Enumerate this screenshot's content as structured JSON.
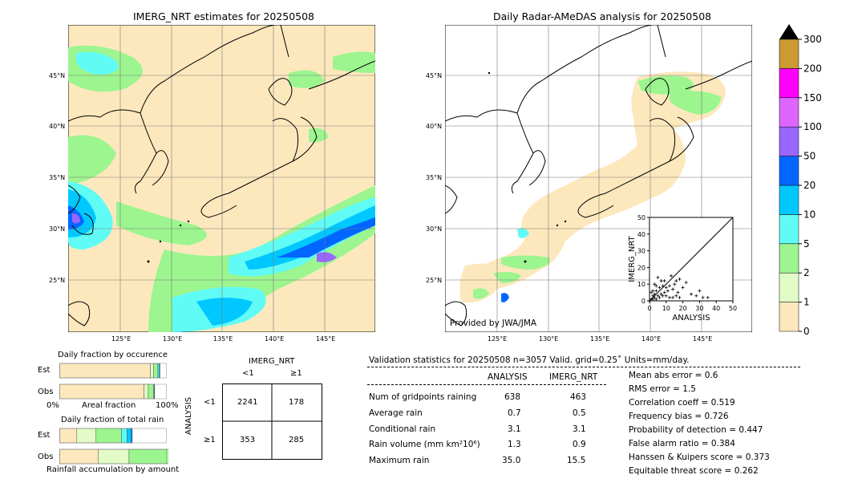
{
  "left_map": {
    "title": "IMERG_NRT estimates for 20250508",
    "lat_labels": [
      "45°N",
      "40°N",
      "35°N",
      "30°N",
      "25°N"
    ],
    "lon_labels": [
      "125°E",
      "130°E",
      "135°E",
      "140°E",
      "145°E"
    ]
  },
  "right_map": {
    "title": "Daily Radar-AMeDAS analysis for 20250508",
    "lat_labels": [
      "45°N",
      "40°N",
      "35°N",
      "30°N",
      "25°N"
    ],
    "lon_labels": [
      "125°E",
      "130°E",
      "135°E",
      "140°E",
      "145°E"
    ],
    "credit": "Provided by JWA/JMA"
  },
  "colorbar": {
    "levels": [
      "0",
      "1",
      "2",
      "5",
      "10",
      "20",
      "50",
      "100",
      "150",
      "200",
      "300"
    ],
    "colors": [
      "#fde8bd",
      "#e2fbc7",
      "#9cf58f",
      "#60fbf5",
      "#00c8ff",
      "#0066ff",
      "#9966ff",
      "#dd66ff",
      "#ff00ff",
      "#cc9933"
    ],
    "extend_color": "#000000"
  },
  "occurrence": {
    "title": "Daily fraction by occurence",
    "rows": [
      "Est",
      "Obs"
    ],
    "xlabel_left": "0%",
    "xlabel_mid": "Areal fraction",
    "xlabel_right": "100%",
    "est_fractions": [
      0.85,
      0.03,
      0.04,
      0.01,
      0.01
    ],
    "obs_fractions": [
      0.79,
      0.04,
      0.05,
      0.005,
      0.005
    ],
    "colors": [
      "#fde8bd",
      "#e2fbc7",
      "#9cf58f",
      "#60fbf5",
      "#00c8ff"
    ]
  },
  "total_rain": {
    "title": "Daily fraction of total rain",
    "rows": [
      "Est",
      "Obs"
    ],
    "footer": "Rainfall accumulation by amount",
    "est_fractions": [
      0.16,
      0.18,
      0.24,
      0.05,
      0.04,
      0.01
    ],
    "obs_fractions": [
      0.36,
      0.29,
      0.41,
      0.07,
      0.05,
      0.09
    ],
    "colors": [
      "#fde8bd",
      "#e2fbc7",
      "#9cf58f",
      "#60fbf5",
      "#00c8ff",
      "#0066ff"
    ]
  },
  "contingency": {
    "title": "IMERG_NRT",
    "col_headers": [
      "<1",
      "≥1"
    ],
    "row_headers": [
      "<1",
      "≥1"
    ],
    "ylabel": "ANALYSIS",
    "cells": [
      [
        "2241",
        "178"
      ],
      [
        "353",
        "285"
      ]
    ]
  },
  "stats": {
    "header": "Validation statistics for 20250508  n=3057 Valid. grid=0.25˚ Units=mm/day.",
    "col_analysis": "ANALYSIS",
    "col_imerg": "IMERG_NRT",
    "rows": [
      {
        "label": "Num of gridpoints raining",
        "a": "638",
        "b": "463"
      },
      {
        "label": "Average rain",
        "a": "0.7",
        "b": "0.5"
      },
      {
        "label": "Conditional rain",
        "a": "3.1",
        "b": "3.1"
      },
      {
        "label": "Rain volume (mm km²10⁶)",
        "a": "1.3",
        "b": "0.9"
      },
      {
        "label": "Maximum rain",
        "a": "35.0",
        "b": "15.5"
      }
    ],
    "scores": [
      "Mean abs error =    0.6",
      "RMS error =    1.5",
      "Correlation coeff =  0.519",
      "Frequency bias =  0.726",
      "Probability of detection =  0.447",
      "False alarm ratio =  0.384",
      "Hanssen & Kuipers score =  0.373",
      "Equitable threat score =  0.262"
    ]
  },
  "chart_data": {
    "type": "scatter",
    "xlabel": "ANALYSIS",
    "ylabel": "IMERG_NRT",
    "xlim": [
      0,
      50
    ],
    "ylim": [
      0,
      50
    ],
    "ticks": [
      0,
      10,
      20,
      30,
      40,
      50
    ],
    "points": [
      [
        1,
        1
      ],
      [
        2,
        1
      ],
      [
        3,
        2
      ],
      [
        4,
        1
      ],
      [
        5,
        3
      ],
      [
        6,
        2
      ],
      [
        7,
        4
      ],
      [
        8,
        3
      ],
      [
        9,
        5
      ],
      [
        10,
        8
      ],
      [
        11,
        6
      ],
      [
        12,
        9
      ],
      [
        14,
        7
      ],
      [
        15,
        10
      ],
      [
        16,
        12
      ],
      [
        17,
        5
      ],
      [
        18,
        13
      ],
      [
        20,
        8
      ],
      [
        22,
        11
      ],
      [
        2,
        3
      ],
      [
        3,
        4
      ],
      [
        4,
        6
      ],
      [
        6,
        8
      ],
      [
        8,
        9
      ],
      [
        10,
        3
      ],
      [
        12,
        2
      ],
      [
        14,
        2
      ],
      [
        16,
        3
      ],
      [
        18,
        2
      ],
      [
        25,
        4
      ],
      [
        28,
        3
      ],
      [
        30,
        6
      ],
      [
        32,
        2
      ],
      [
        35,
        2
      ],
      [
        5,
        14
      ],
      [
        7,
        12
      ],
      [
        3,
        10
      ],
      [
        1,
        5
      ],
      [
        2,
        6
      ],
      [
        4,
        9
      ],
      [
        13,
        15
      ],
      [
        9,
        12
      ]
    ]
  }
}
